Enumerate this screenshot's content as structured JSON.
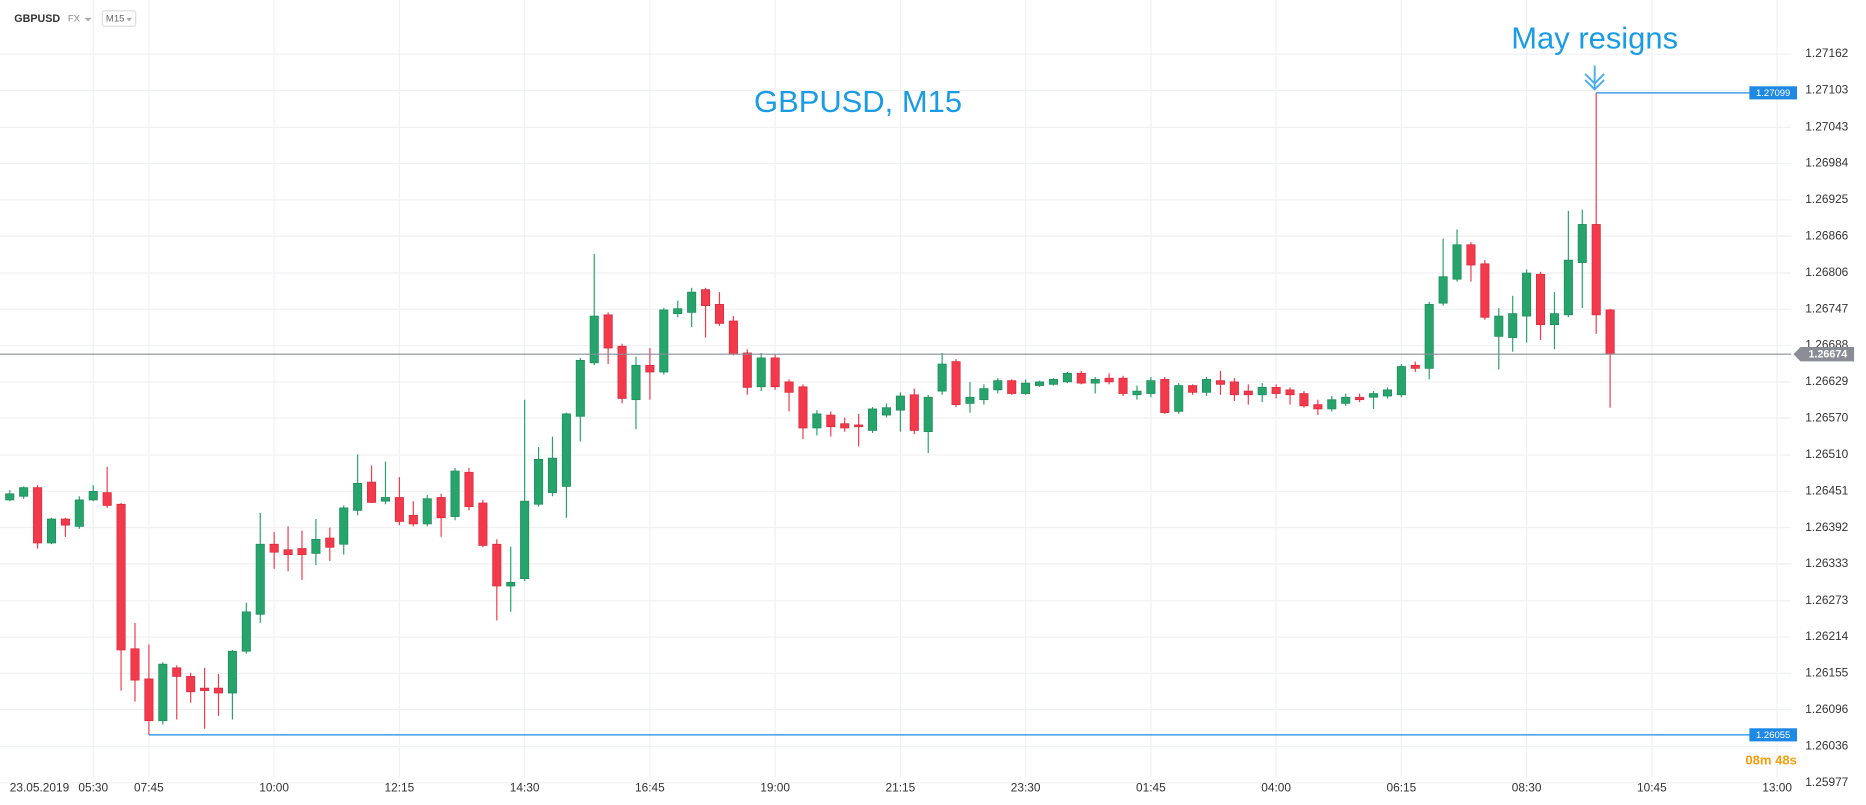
{
  "toolbar": {
    "symbol": "GBPUSD",
    "market": "FX",
    "interval": "M15"
  },
  "countdown": "08m 48s",
  "chart_data": {
    "type": "candlestick",
    "title": "GBPUSD, M15",
    "annotation": "May resigns",
    "up_color": "#26a46c",
    "down_color": "#f23a4c",
    "grid": true,
    "xlim": [
      -0.7,
      128
    ],
    "xticks": [
      {
        "value": 0,
        "label": "23.05.2019"
      },
      {
        "value": 6,
        "label": "05:30"
      },
      {
        "value": 10,
        "label": "07:45"
      },
      {
        "value": 19,
        "label": "10:00"
      },
      {
        "value": 28,
        "label": "12:15"
      },
      {
        "value": 37,
        "label": "14:30"
      },
      {
        "value": 46,
        "label": "16:45"
      },
      {
        "value": 55,
        "label": "19:00"
      },
      {
        "value": 64,
        "label": "21:15"
      },
      {
        "value": 73,
        "label": "23:30"
      },
      {
        "value": 82,
        "label": "01:45"
      },
      {
        "value": 91,
        "label": "04:00"
      },
      {
        "value": 100,
        "label": "06:15"
      },
      {
        "value": 109,
        "label": "08:30"
      },
      {
        "value": 118,
        "label": "10:45"
      },
      {
        "value": 127,
        "label": "13:00"
      }
    ],
    "ylim": [
      1.2597,
      1.2725
    ],
    "yticks": [
      1.27162,
      1.27103,
      1.27043,
      1.26984,
      1.26925,
      1.26866,
      1.26806,
      1.26747,
      1.26688,
      1.26629,
      {
        "value": 1.2657,
        "label": "1.26570"
      },
      {
        "value": 1.2651,
        "label": "1.26510"
      },
      1.26451,
      1.26392,
      1.26333,
      1.26273,
      1.26214,
      1.26155,
      1.26096,
      1.26036,
      1.25977
    ],
    "high_line": {
      "value": 1.27099,
      "color": "#1e88e5"
    },
    "low_line": {
      "value": 1.26055,
      "color": "#1e88e5"
    },
    "last_price": {
      "value": 1.26674,
      "color": "#8a8d96"
    },
    "open": [
      1.26437,
      1.26443,
      1.26457,
      1.26367,
      1.26406,
      1.26394,
      1.26437,
      1.26449,
      1.2643,
      1.26195,
      1.26146,
      1.26078,
      1.26164,
      1.2615,
      1.26131,
      1.26131,
      1.26123,
      1.26191,
      1.26251,
      1.26365,
      1.26356,
      1.26358,
      1.2635,
      1.26375,
      1.26365,
      1.2642,
      1.26466,
      1.26435,
      1.26441,
      1.26412,
      1.26398,
      1.26441,
      1.2641,
      1.26482,
      1.26432,
      1.26365,
      1.26297,
      1.26309,
      1.2643,
      1.26449,
      1.26459,
      1.26573,
      1.2666,
      1.26738,
      1.26687,
      1.266,
      1.26656,
      1.26645,
      1.2674,
      1.26742,
      1.26779,
      1.26755,
      1.26728,
      1.26676,
      1.26621,
      1.26668,
      1.26629,
      1.26621,
      1.26554,
      1.26575,
      1.26561,
      1.26559,
      1.2655,
      1.26575,
      1.26583,
      1.26608,
      1.26548,
      1.26614,
      1.26662,
      1.26594,
      1.266,
      1.26616,
      1.26631,
      1.2661,
      1.26623,
      1.26625,
      1.26629,
      1.26643,
      1.26627,
      1.26635,
      1.26635,
      1.26608,
      1.2661,
      1.26633,
      1.26581,
      1.26623,
      1.26612,
      1.26631,
      1.26629,
      1.26614,
      1.26608,
      1.2662,
      1.26616,
      1.2661,
      1.26592,
      1.26585,
      1.26594,
      1.26604,
      1.26604,
      1.26606,
      1.26608,
      1.26656,
      1.26651,
      1.26757,
      1.26796,
      1.26852,
      1.26821,
      1.26703,
      1.26701,
      1.26736,
      1.26804,
      1.26722,
      1.26738,
      1.26823,
      1.26885,
      1.26746
    ],
    "high": [
      1.26453,
      1.26459,
      1.26461,
      1.26408,
      1.26408,
      1.26443,
      1.26461,
      1.26491,
      1.26432,
      1.26237,
      1.26202,
      1.26173,
      1.26168,
      1.26156,
      1.26164,
      1.26154,
      1.26193,
      1.2627,
      1.26416,
      1.26385,
      1.26394,
      1.26387,
      1.26406,
      1.26392,
      1.26428,
      1.26511,
      1.26493,
      1.26499,
      1.26474,
      1.26435,
      1.26445,
      1.26447,
      1.26489,
      1.26489,
      1.26437,
      1.26373,
      1.26361,
      1.266,
      1.26523,
      1.2654,
      1.26579,
      1.26668,
      1.26837,
      1.26742,
      1.26691,
      1.2667,
      1.26684,
      1.26749,
      1.26761,
      1.26782,
      1.26782,
      1.26775,
      1.26736,
      1.26682,
      1.26676,
      1.26674,
      1.26633,
      1.26625,
      1.26583,
      1.26581,
      1.26571,
      1.26577,
      1.26588,
      1.26594,
      1.26612,
      1.26618,
      1.26608,
      1.26676,
      1.26666,
      1.26629,
      1.26625,
      1.26635,
      1.26633,
      1.26633,
      1.26631,
      1.26635,
      1.26645,
      1.26647,
      1.26637,
      1.26643,
      1.26639,
      1.26623,
      1.26637,
      1.26637,
      1.26627,
      1.26625,
      1.26637,
      1.26647,
      1.26635,
      1.26625,
      1.26627,
      1.26625,
      1.2662,
      1.26614,
      1.266,
      1.26606,
      1.2661,
      1.2661,
      1.26614,
      1.2662,
      1.26658,
      1.26662,
      1.26759,
      1.26862,
      1.26877,
      1.26856,
      1.26827,
      1.26749,
      1.26769,
      1.26812,
      1.26808,
      1.26775,
      1.26907,
      1.26909,
      1.27099,
      1.26748
    ],
    "low": [
      1.26435,
      1.26439,
      1.26358,
      1.26365,
      1.26377,
      1.2639,
      1.26435,
      1.26424,
      1.26127,
      1.26109,
      1.26055,
      1.26072,
      1.2608,
      1.26107,
      1.26065,
      1.26086,
      1.2608,
      1.26187,
      1.26237,
      1.26325,
      1.26321,
      1.26307,
      1.26331,
      1.26338,
      1.26348,
      1.26412,
      1.26432,
      1.2643,
      1.26396,
      1.26394,
      1.26394,
      1.26377,
      1.26404,
      1.2642,
      1.2636,
      1.26241,
      1.26255,
      1.26305,
      1.26426,
      1.26443,
      1.26408,
      1.26532,
      1.26656,
      1.26658,
      1.26594,
      1.26552,
      1.266,
      1.26641,
      1.26734,
      1.26718,
      1.26701,
      1.2672,
      1.26672,
      1.26608,
      1.26614,
      1.26616,
      1.26581,
      1.26536,
      1.26542,
      1.2654,
      1.26548,
      1.26524,
      1.26546,
      1.26571,
      1.26548,
      1.26544,
      1.26513,
      1.26608,
      1.26588,
      1.26579,
      1.26592,
      1.2661,
      1.26608,
      1.26608,
      1.26621,
      1.26623,
      1.26627,
      1.26625,
      1.2661,
      1.26625,
      1.26606,
      1.266,
      1.26604,
      1.26577,
      1.26577,
      1.26608,
      1.26606,
      1.26608,
      1.26598,
      1.26592,
      1.26596,
      1.26602,
      1.26592,
      1.26587,
      1.26575,
      1.26581,
      1.2659,
      1.26596,
      1.26585,
      1.26602,
      1.26604,
      1.26645,
      1.26633,
      1.26753,
      1.26792,
      1.26792,
      1.2673,
      1.26649,
      1.26678,
      1.26693,
      1.26697,
      1.26682,
      1.26734,
      1.26749,
      1.26707,
      1.26587
    ],
    "close": [
      1.26447,
      1.26457,
      1.26367,
      1.26406,
      1.26396,
      1.26437,
      1.26451,
      1.26428,
      1.26193,
      1.26144,
      1.26078,
      1.2617,
      1.2615,
      1.26125,
      1.26127,
      1.26123,
      1.26191,
      1.26255,
      1.26365,
      1.26352,
      1.26348,
      1.26348,
      1.26373,
      1.2636,
      1.26424,
      1.26464,
      1.26433,
      1.26441,
      1.26402,
      1.26398,
      1.26439,
      1.26408,
      1.26484,
      1.26426,
      1.26363,
      1.26297,
      1.26303,
      1.26435,
      1.26503,
      1.26505,
      1.26577,
      1.26664,
      1.26736,
      1.26684,
      1.26602,
      1.26656,
      1.26645,
      1.26746,
      1.26748,
      1.26775,
      1.26753,
      1.26724,
      1.26674,
      1.2662,
      1.26668,
      1.26621,
      1.26612,
      1.26554,
      1.26577,
      1.26556,
      1.26554,
      1.26556,
      1.26585,
      1.26587,
      1.26606,
      1.2655,
      1.26604,
      1.26658,
      1.26592,
      1.26604,
      1.26618,
      1.26631,
      1.2661,
      1.26627,
      1.26629,
      1.26633,
      1.26643,
      1.26627,
      1.26633,
      1.26629,
      1.2661,
      1.26614,
      1.26631,
      1.26579,
      1.26623,
      1.26612,
      1.26633,
      1.26625,
      1.26608,
      1.26608,
      1.2662,
      1.2661,
      1.26608,
      1.2659,
      1.26585,
      1.266,
      1.26604,
      1.266,
      1.2661,
      1.26616,
      1.26654,
      1.26651,
      1.26755,
      1.268,
      1.26852,
      1.26819,
      1.26734,
      1.26736,
      1.2674,
      1.26806,
      1.26722,
      1.2674,
      1.26827,
      1.26885,
      1.26738,
      1.26674
    ]
  }
}
